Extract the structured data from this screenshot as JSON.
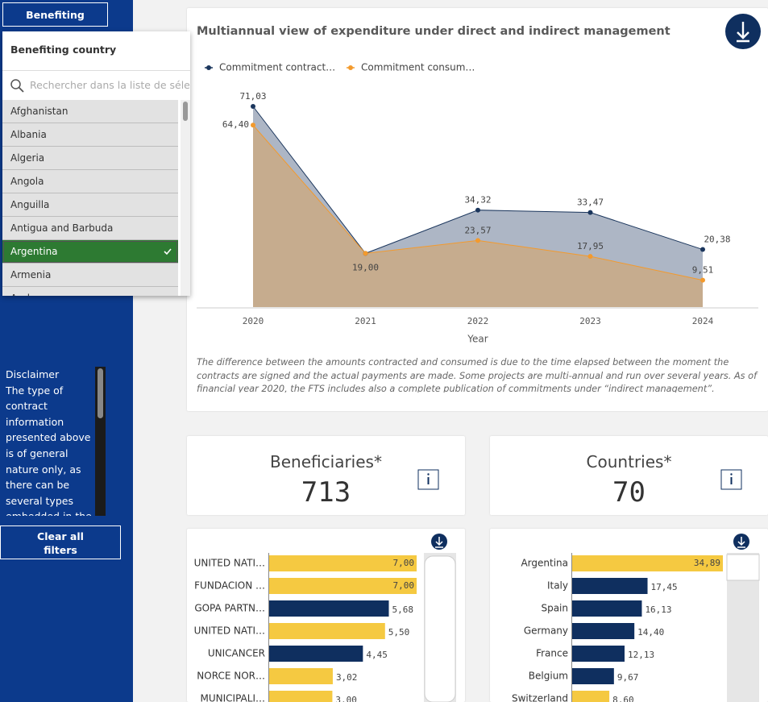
{
  "sidebar": {
    "filter_button": "Benefiting country",
    "disclaimer_title": "Disclaimer",
    "disclaimer_text": "The type of contract information presented above is of general nature only, as there can be several types embedded in the same contract",
    "clear_button": "Clear all filters"
  },
  "dropdown": {
    "title": "Benefiting country",
    "search_placeholder": "Rechercher dans la liste de sélectio",
    "items": [
      "Afghanistan",
      "Albania",
      "Algeria",
      "Angola",
      "Anguilla",
      "Antigua and Barbuda",
      "Argentina",
      "Armenia",
      "Aruba"
    ],
    "selected": "Argentina"
  },
  "kpis": [
    {
      "label": "Beneficiaries*",
      "value": 713
    },
    {
      "label": "Countries*",
      "value": 70
    }
  ],
  "chart_data": [
    {
      "type": "area",
      "title": "Multiannual view of expenditure under direct and indirect management",
      "x_label": "Year",
      "categories": [
        "2020",
        "2021",
        "2022",
        "2023",
        "2024"
      ],
      "series": [
        {
          "name": "Commitment contract…",
          "color": "#1b365d",
          "values": [
            71.03,
            19.0,
            34.32,
            33.47,
            20.38
          ],
          "value_labels": [
            "71,03",
            null,
            "34,32",
            "33,47",
            "20,38"
          ]
        },
        {
          "name": "Commitment consum…",
          "color": "#f39a2d",
          "values": [
            64.4,
            19.0,
            23.57,
            17.95,
            9.51
          ],
          "value_labels": [
            "64,40",
            "19,00",
            "23,57",
            "17,95",
            "9,51"
          ]
        }
      ],
      "note": "The difference between the amounts contracted and consumed is due to the time elapsed between the moment the contracts are signed and the actual payments are made. Some projects are multi-annual and run over several years. As of financial year 2020, the FTS includes also a complete publication of commitments under “indirect management”."
    },
    {
      "type": "hbar",
      "categories": [
        "UNITED NATI…",
        "FUNDACION …",
        "GOPA PARTN…",
        "UNITED NATI…",
        "UNICANCER",
        "NORCE NOR…",
        "MUNICIPALI…"
      ],
      "values": [
        7.0,
        7.0,
        5.68,
        5.5,
        4.45,
        3.02,
        3.0
      ],
      "value_labels": [
        "7,00",
        "7,00",
        "5,68",
        "5,50",
        "4,45",
        "3,02",
        "3,00"
      ],
      "colors": [
        "#f5c941",
        "#f5c941",
        "#0f2f5f",
        "#f5c941",
        "#0f2f5f",
        "#f5c941",
        "#f5c941"
      ]
    },
    {
      "type": "hbar",
      "categories": [
        "Argentina",
        "Italy",
        "Spain",
        "Germany",
        "France",
        "Belgium",
        "Switzerland"
      ],
      "values": [
        34.89,
        17.45,
        16.13,
        14.4,
        12.13,
        9.67,
        8.6
      ],
      "value_labels": [
        "34,89",
        "17,45",
        "16,13",
        "14,40",
        "12,13",
        "9,67",
        "8,60"
      ],
      "colors": [
        "#f5c941",
        "#0f2f5f",
        "#0f2f5f",
        "#0f2f5f",
        "#0f2f5f",
        "#0f2f5f",
        "#f5c941"
      ]
    }
  ]
}
